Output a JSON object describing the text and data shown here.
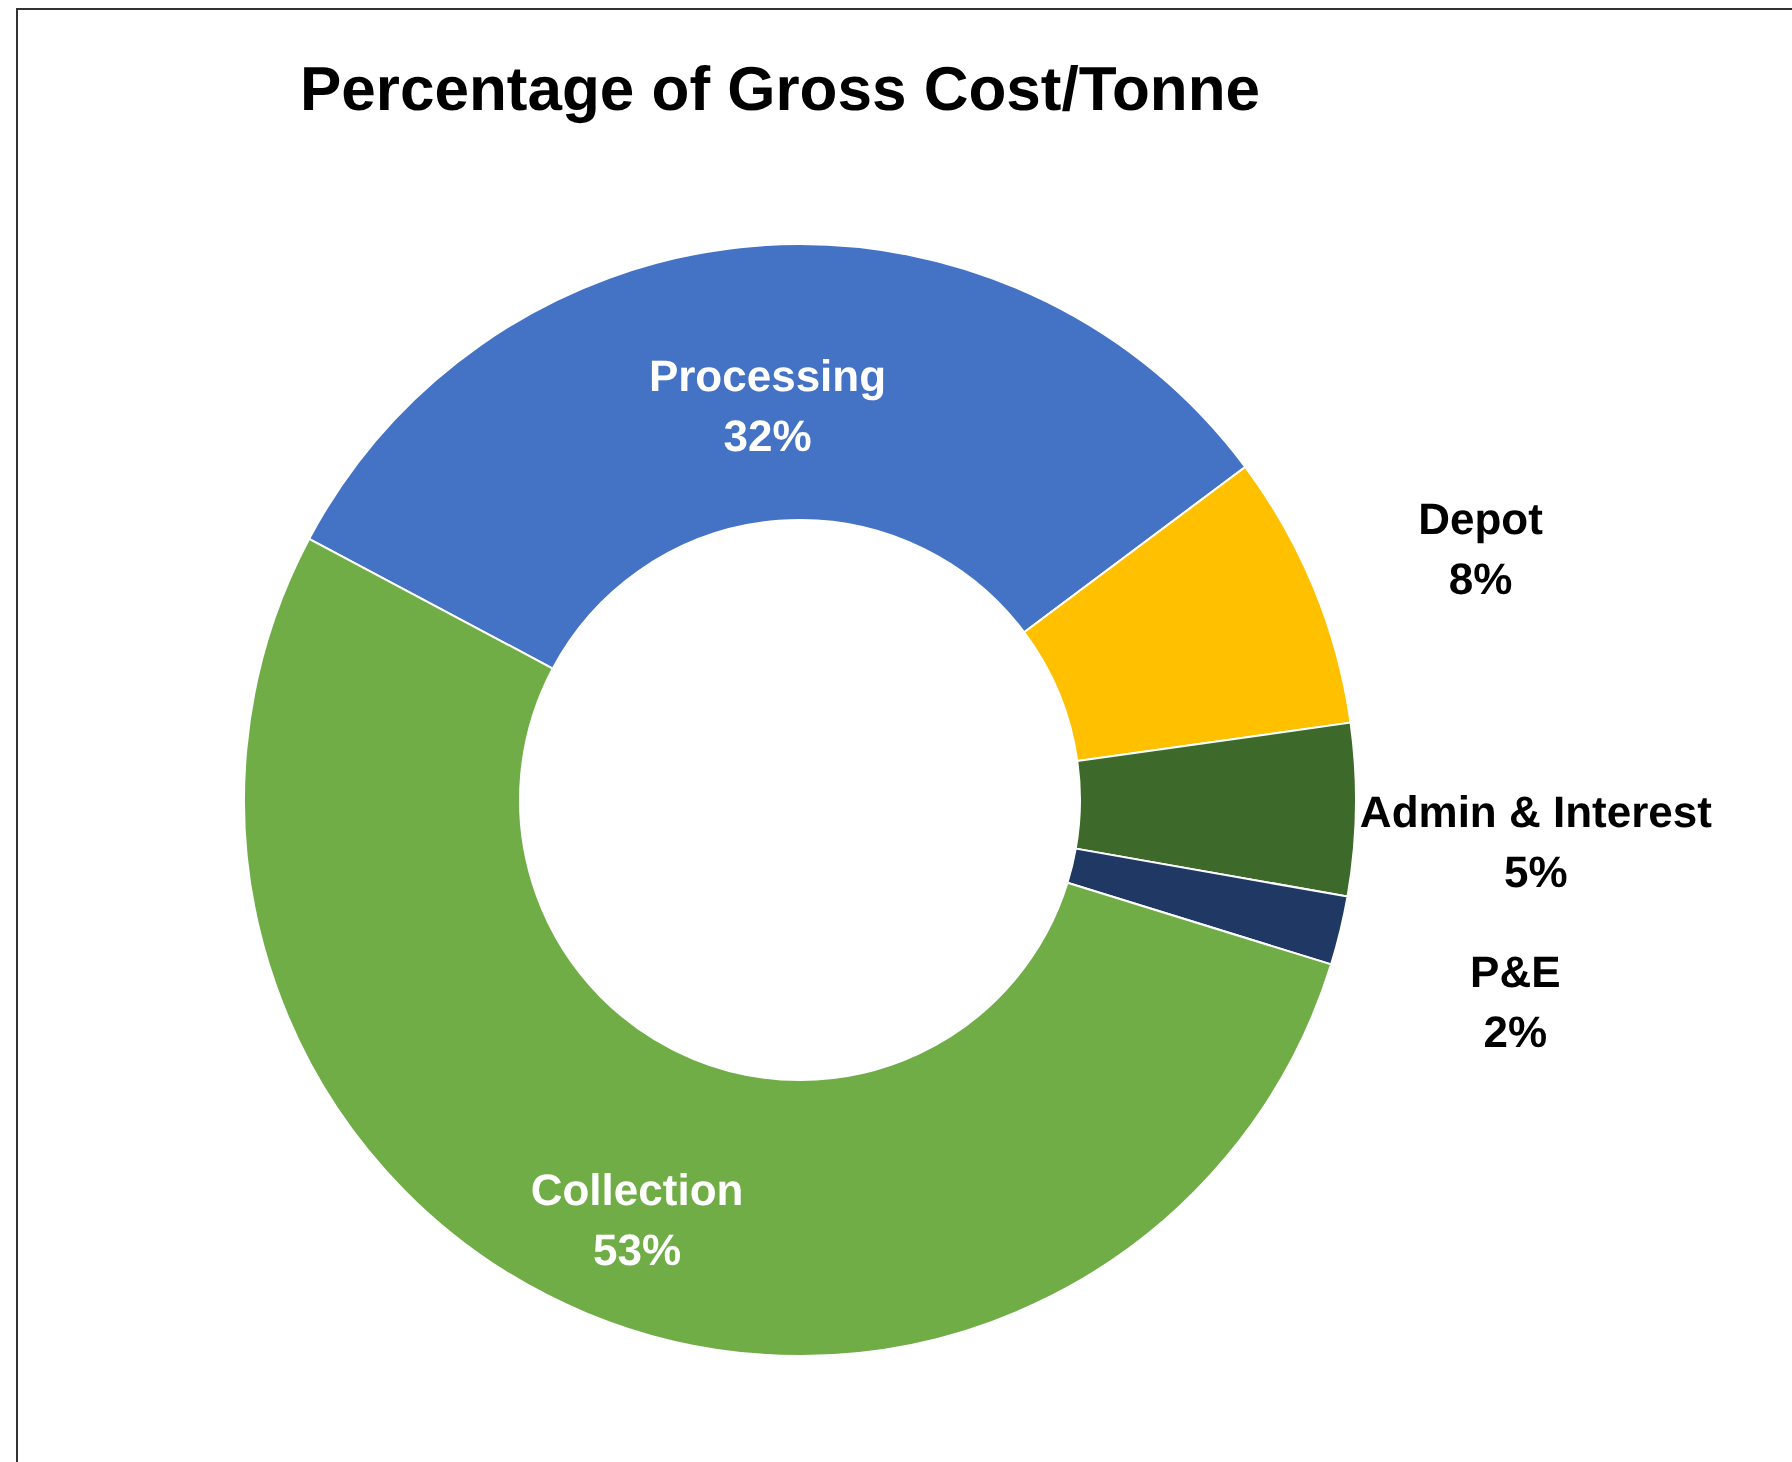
{
  "chart_data": {
    "type": "donut",
    "title": "Percentage of Gross Cost/Tonne",
    "categories": [
      "Processing",
      "Depot",
      "Admin & Interest",
      "P&E",
      "Collection"
    ],
    "values": [
      32,
      8,
      5,
      2,
      53
    ],
    "colors": [
      "#4472c4",
      "#ffc000",
      "#3d6a2a",
      "#203864",
      "#70ad47"
    ],
    "value_labels": [
      "32%",
      "8%",
      "5%",
      "2%",
      "53%"
    ],
    "legend": false
  }
}
